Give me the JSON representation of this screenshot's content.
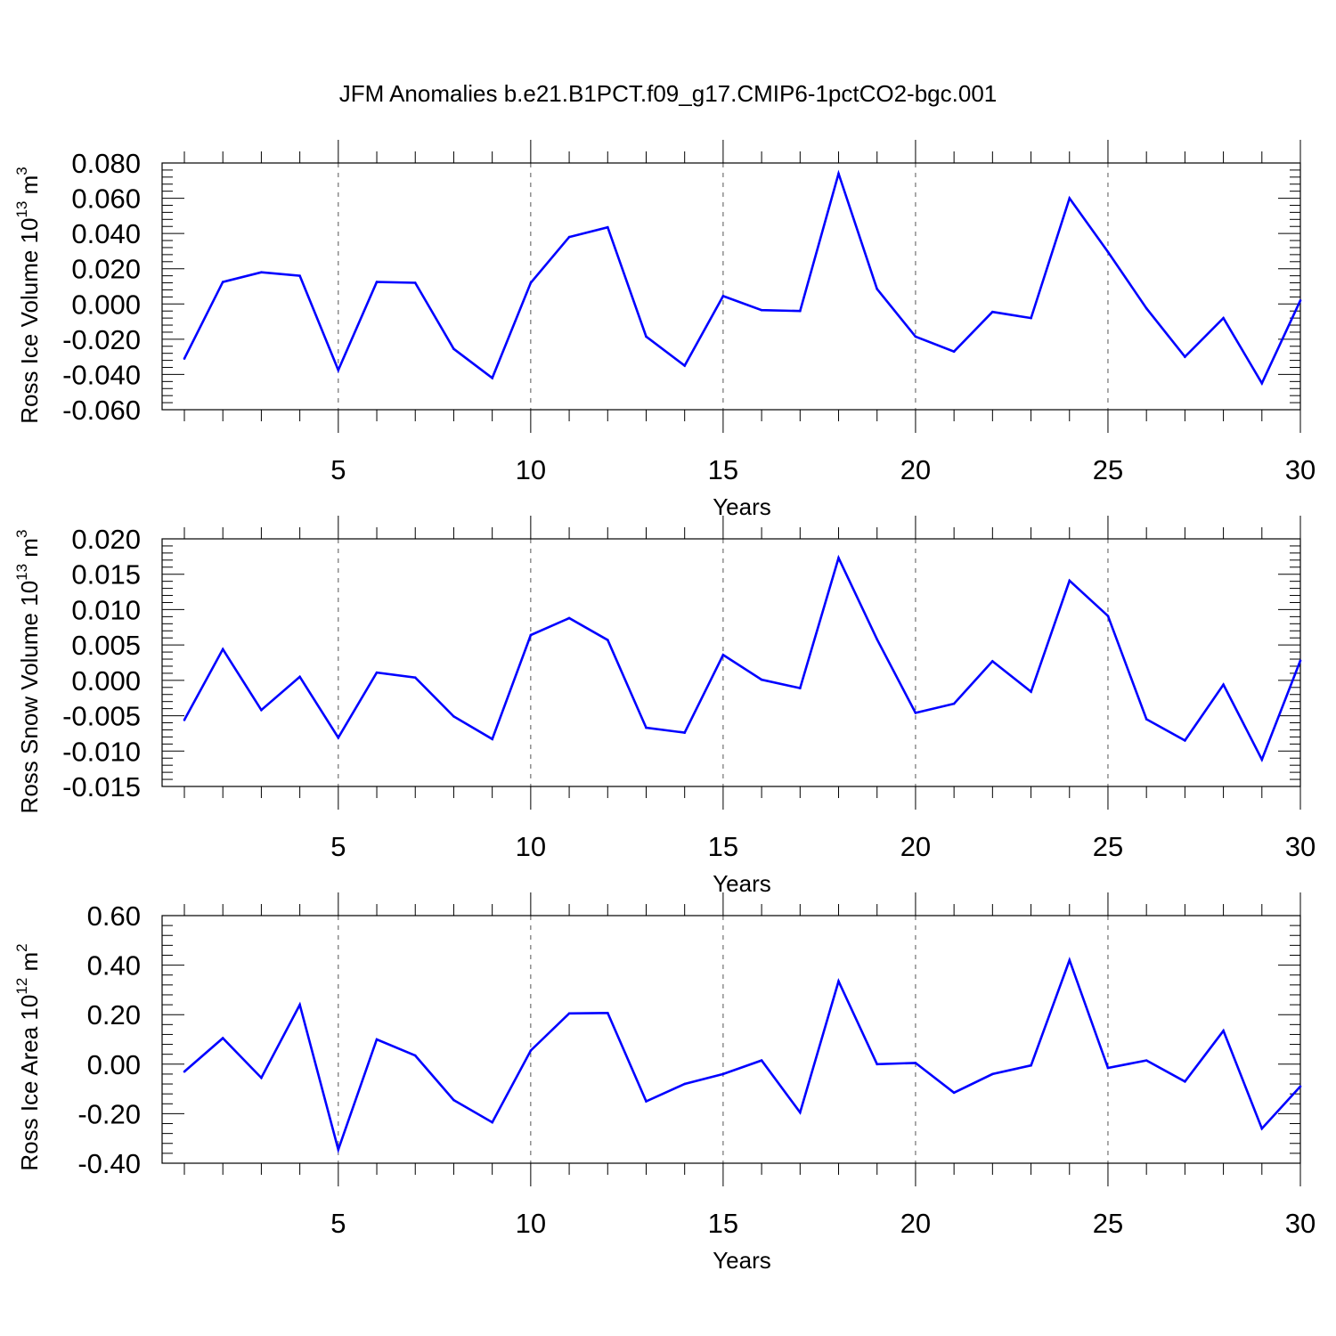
{
  "title": "JFM Anomalies b.e21.B1PCT.f09_g17.CMIP6-1pctCO2-bgc.001",
  "colors": {
    "line": "#0000ff",
    "axis": "#000000",
    "grid": "#555555"
  },
  "chart_data": [
    {
      "type": "line",
      "title": "JFM Anomalies b.e21.B1PCT.f09_g17.CMIP6-1pctCO2-bgc.001",
      "xlabel": "Years",
      "ylabel": "Ross Ice Volume 10",
      "ylabel_exp": "13",
      "ylabel_unit": " m",
      "ylabel_unit_exp": "3",
      "xlim": [
        1,
        30
      ],
      "ylim": [
        -0.06,
        0.08
      ],
      "xticks": [
        5,
        10,
        15,
        20,
        25,
        30
      ],
      "xtick_labels": [
        "5",
        "10",
        "15",
        "20",
        "25",
        "30"
      ],
      "yticks": [
        -0.06,
        -0.04,
        -0.02,
        0.0,
        0.02,
        0.04,
        0.06,
        0.08
      ],
      "ytick_labels": [
        "-0.060",
        "-0.040",
        "-0.020",
        "0.000",
        "0.020",
        "0.040",
        "0.060",
        "0.080"
      ],
      "grid": "vertical dashed at major x ticks",
      "x": [
        1,
        2,
        3,
        4,
        5,
        6,
        7,
        8,
        9,
        10,
        11,
        12,
        13,
        14,
        15,
        16,
        17,
        18,
        19,
        20,
        21,
        22,
        23,
        24,
        25,
        26,
        27,
        28,
        29,
        30
      ],
      "values": [
        -0.031,
        0.0125,
        0.018,
        0.016,
        -0.0375,
        0.0125,
        0.012,
        -0.0255,
        -0.042,
        0.012,
        0.038,
        0.0435,
        -0.0185,
        -0.035,
        0.0045,
        -0.0035,
        -0.004,
        0.074,
        0.0085,
        -0.0185,
        -0.027,
        -0.0045,
        -0.008,
        0.06,
        0.0295,
        -0.0025,
        -0.03,
        -0.008,
        -0.045,
        0.002
      ]
    },
    {
      "type": "line",
      "xlabel": "Years",
      "ylabel": "Ross Snow Volume 10",
      "ylabel_exp": "13",
      "ylabel_unit": " m",
      "ylabel_unit_exp": "3",
      "xlim": [
        1,
        30
      ],
      "ylim": [
        -0.015,
        0.02
      ],
      "xticks": [
        5,
        10,
        15,
        20,
        25,
        30
      ],
      "xtick_labels": [
        "5",
        "10",
        "15",
        "20",
        "25",
        "30"
      ],
      "yticks": [
        -0.015,
        -0.01,
        -0.005,
        0.0,
        0.005,
        0.01,
        0.015,
        0.02
      ],
      "ytick_labels": [
        "-0.015",
        "-0.010",
        "-0.005",
        "0.000",
        "0.005",
        "0.010",
        "0.015",
        "0.020"
      ],
      "grid": "vertical dashed at major x ticks",
      "x": [
        1,
        2,
        3,
        4,
        5,
        6,
        7,
        8,
        9,
        10,
        11,
        12,
        13,
        14,
        15,
        16,
        17,
        18,
        19,
        20,
        21,
        22,
        23,
        24,
        25,
        26,
        27,
        28,
        29,
        30
      ],
      "values": [
        -0.0056,
        0.0044,
        -0.0042,
        0.0005,
        -0.0081,
        0.0011,
        0.0004,
        -0.0051,
        -0.0083,
        0.0064,
        0.0088,
        0.0057,
        -0.0067,
        -0.0074,
        0.0036,
        0.0001,
        -0.0011,
        0.0173,
        0.0058,
        -0.0046,
        -0.0033,
        0.0027,
        -0.0016,
        0.0141,
        0.0091,
        -0.0055,
        -0.0085,
        -0.0006,
        -0.0112,
        0.0028
      ]
    },
    {
      "type": "line",
      "xlabel": "Years",
      "ylabel": "Ross Ice Area 10",
      "ylabel_exp": "12",
      "ylabel_unit": " m",
      "ylabel_unit_exp": "2",
      "xlim": [
        1,
        30
      ],
      "ylim": [
        -0.4,
        0.6
      ],
      "xticks": [
        5,
        10,
        15,
        20,
        25,
        30
      ],
      "xtick_labels": [
        "5",
        "10",
        "15",
        "20",
        "25",
        "30"
      ],
      "yticks": [
        -0.4,
        -0.2,
        0.0,
        0.2,
        0.4,
        0.6
      ],
      "ytick_labels": [
        "-0.40",
        "-0.20",
        "0.00",
        "0.20",
        "0.40",
        "0.60"
      ],
      "grid": "vertical dashed at major x ticks",
      "x": [
        1,
        2,
        3,
        4,
        5,
        6,
        7,
        8,
        9,
        10,
        11,
        12,
        13,
        14,
        15,
        16,
        17,
        18,
        19,
        20,
        21,
        22,
        23,
        24,
        25,
        26,
        27,
        28,
        29,
        30
      ],
      "values": [
        -0.03,
        0.105,
        -0.055,
        0.24,
        -0.345,
        0.1,
        0.035,
        -0.145,
        -0.235,
        0.055,
        0.205,
        0.207,
        -0.15,
        -0.08,
        -0.04,
        0.015,
        -0.195,
        0.335,
        0.0,
        0.005,
        -0.115,
        -0.04,
        -0.005,
        0.42,
        -0.015,
        0.015,
        -0.07,
        0.135,
        -0.26,
        -0.09
      ]
    }
  ]
}
